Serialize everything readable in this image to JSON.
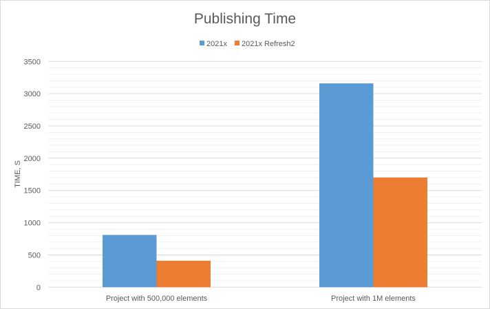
{
  "chart_data": {
    "type": "bar",
    "title": "Publishing Time",
    "xlabel": "",
    "ylabel": "TIME, S",
    "categories": [
      "Project with 500,000 elements",
      "Project with 1M elements"
    ],
    "series": [
      {
        "name": "2021x",
        "color": "#5b9bd5",
        "values": [
          810,
          3160
        ]
      },
      {
        "name": "2021x Refresh2",
        "color": "#ed7d31",
        "values": [
          410,
          1700
        ]
      }
    ],
    "ylim": [
      0,
      3500
    ],
    "yticks": [
      0,
      500,
      1000,
      1500,
      2000,
      2500,
      3000,
      3500
    ],
    "minor_grid_step": 100,
    "grid": true,
    "legend_position": "top"
  }
}
